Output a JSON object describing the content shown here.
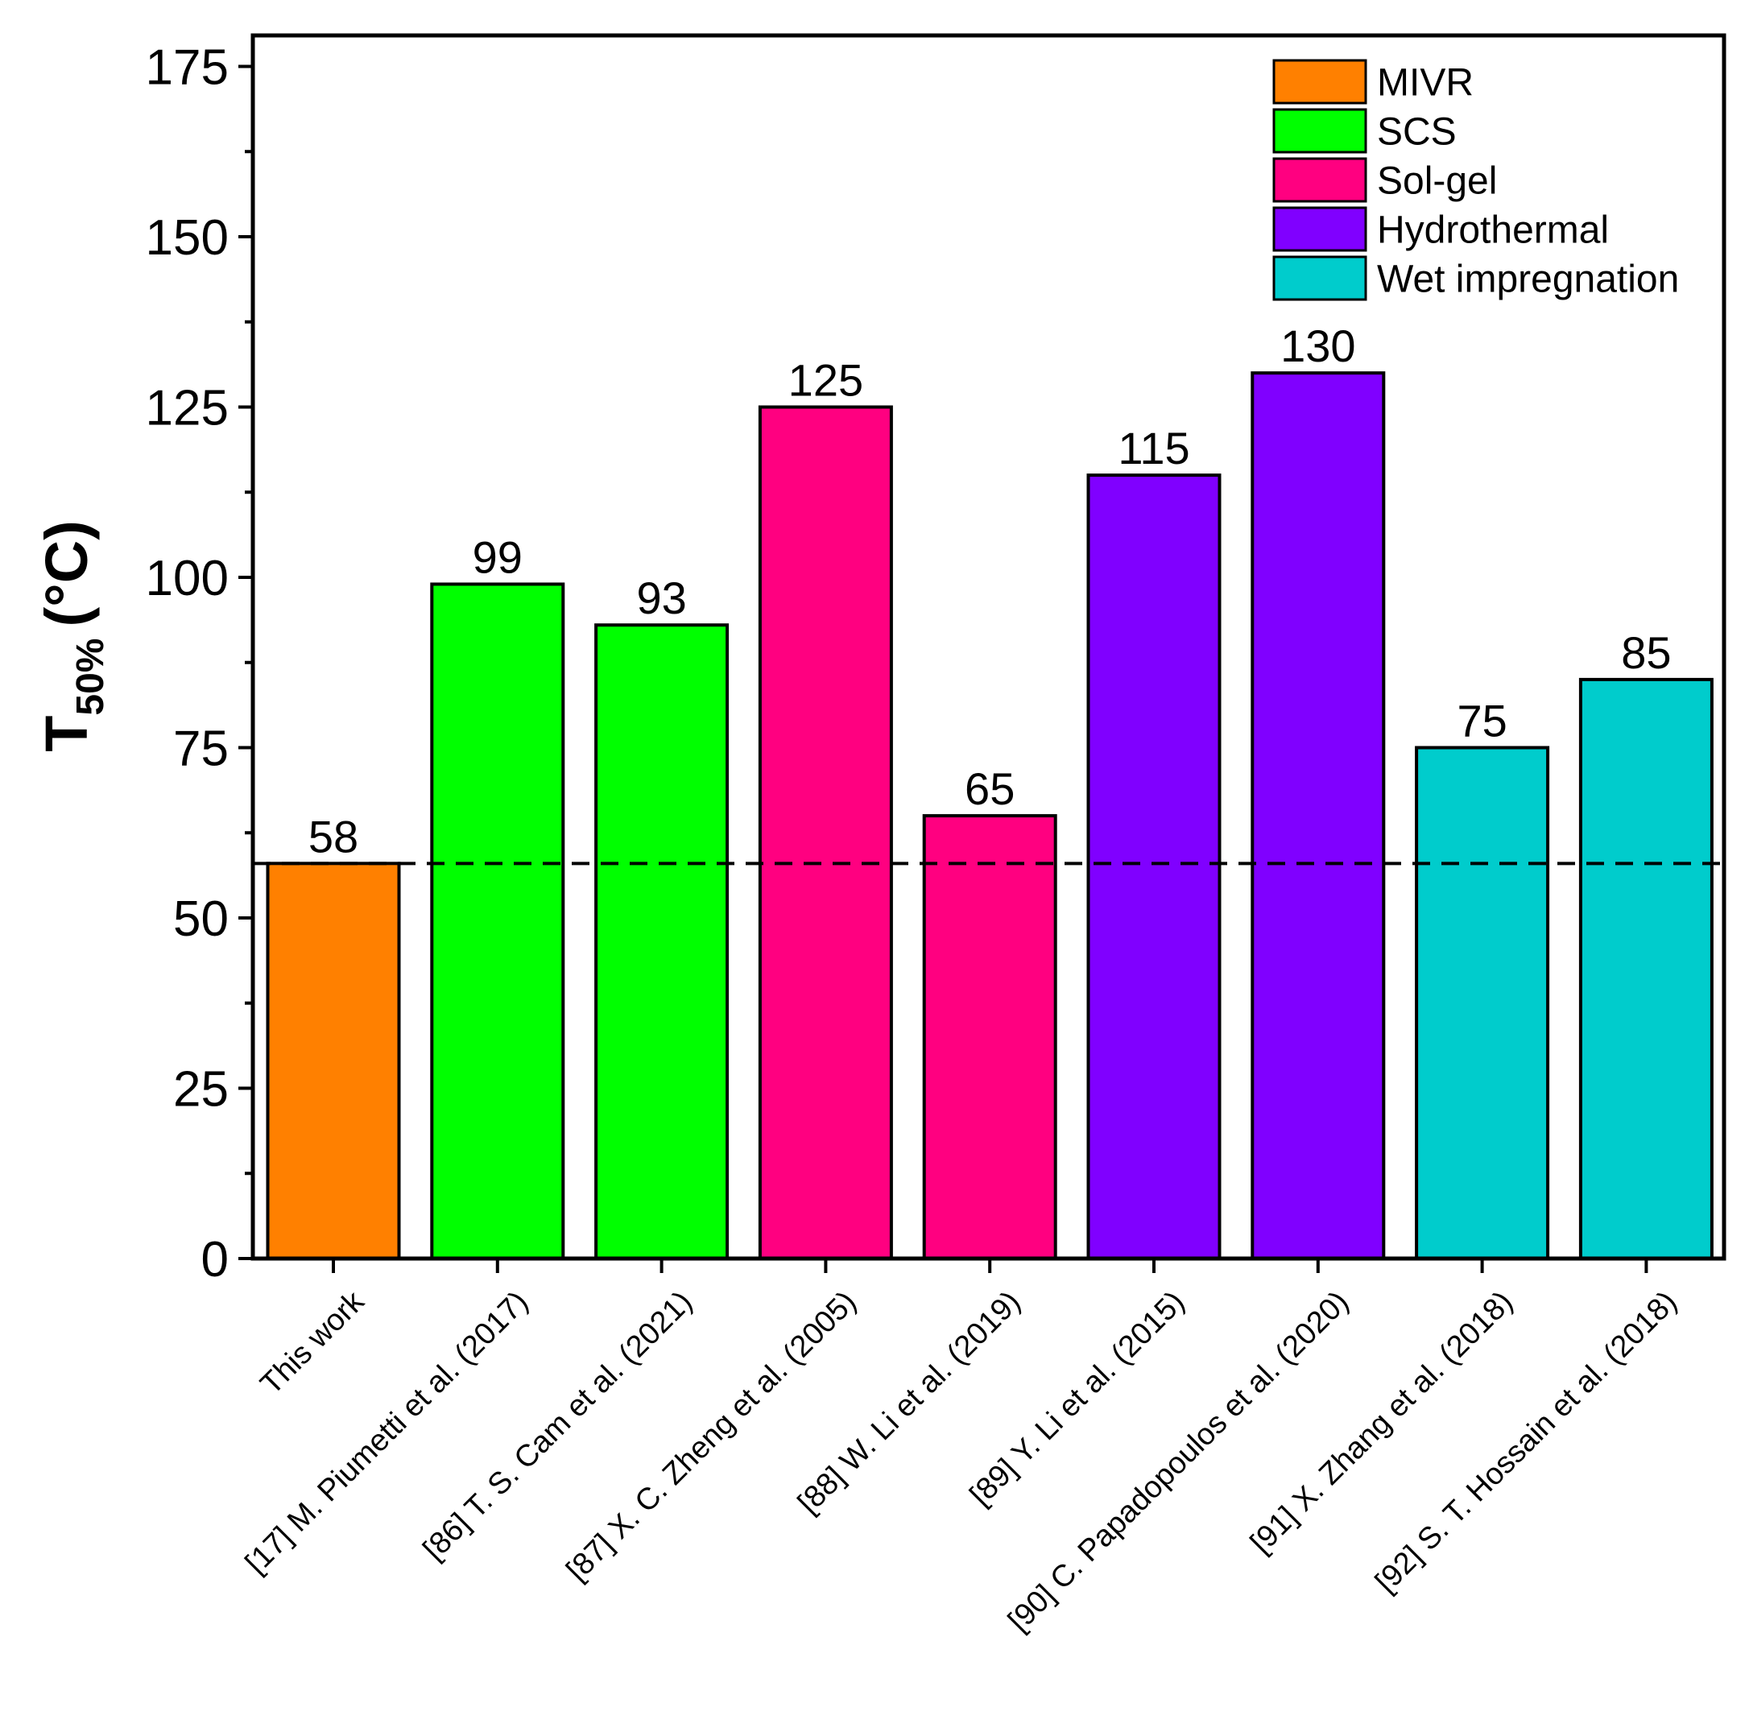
{
  "chart_data": {
    "type": "bar",
    "title": "",
    "xlabel": "",
    "ylabel": {
      "main": "T",
      "subscript": "50%",
      "unit": "(°C)"
    },
    "ylim": [
      0,
      175
    ],
    "yticks": [
      0,
      25,
      50,
      75,
      100,
      125,
      150,
      175
    ],
    "categories": [
      "This work",
      "[17] M. Piumetti et al. (2017)",
      "[86] T. S. Cam et al. (2021)",
      "[87] X. C. Zheng et al. (2005)",
      "[88] W. Li et al. (2019)",
      "[89] Y. Li et al. (2015)",
      "[90] C. Papadopoulos et al. (2020)",
      "[91] X. Zhang et al. (2018)",
      "[92] S. T. Hossain et al. (2018)"
    ],
    "values": [
      58,
      99,
      93,
      125,
      65,
      115,
      130,
      75,
      85
    ],
    "value_labels": [
      "58",
      "99",
      "93",
      "125",
      "65",
      "115",
      "130",
      "75",
      "85"
    ],
    "bar_methods": [
      "MIVR",
      "SCS",
      "SCS",
      "Sol-gel",
      "Sol-gel",
      "Hydrothermal",
      "Hydrothermal",
      "Wet impregnation",
      "Wet impregnation"
    ],
    "legend": [
      {
        "label": "MIVR",
        "color": "#FF8000"
      },
      {
        "label": "SCS",
        "color": "#00FF00"
      },
      {
        "label": "Sol-gel",
        "color": "#FF0080"
      },
      {
        "label": "Hydrothermal",
        "color": "#8000FF"
      },
      {
        "label": "Wet impregnation",
        "color": "#00CCCC"
      }
    ],
    "legend_position": "top-right",
    "reference_line": {
      "value": 58,
      "style": "dashed"
    },
    "grid": false
  }
}
